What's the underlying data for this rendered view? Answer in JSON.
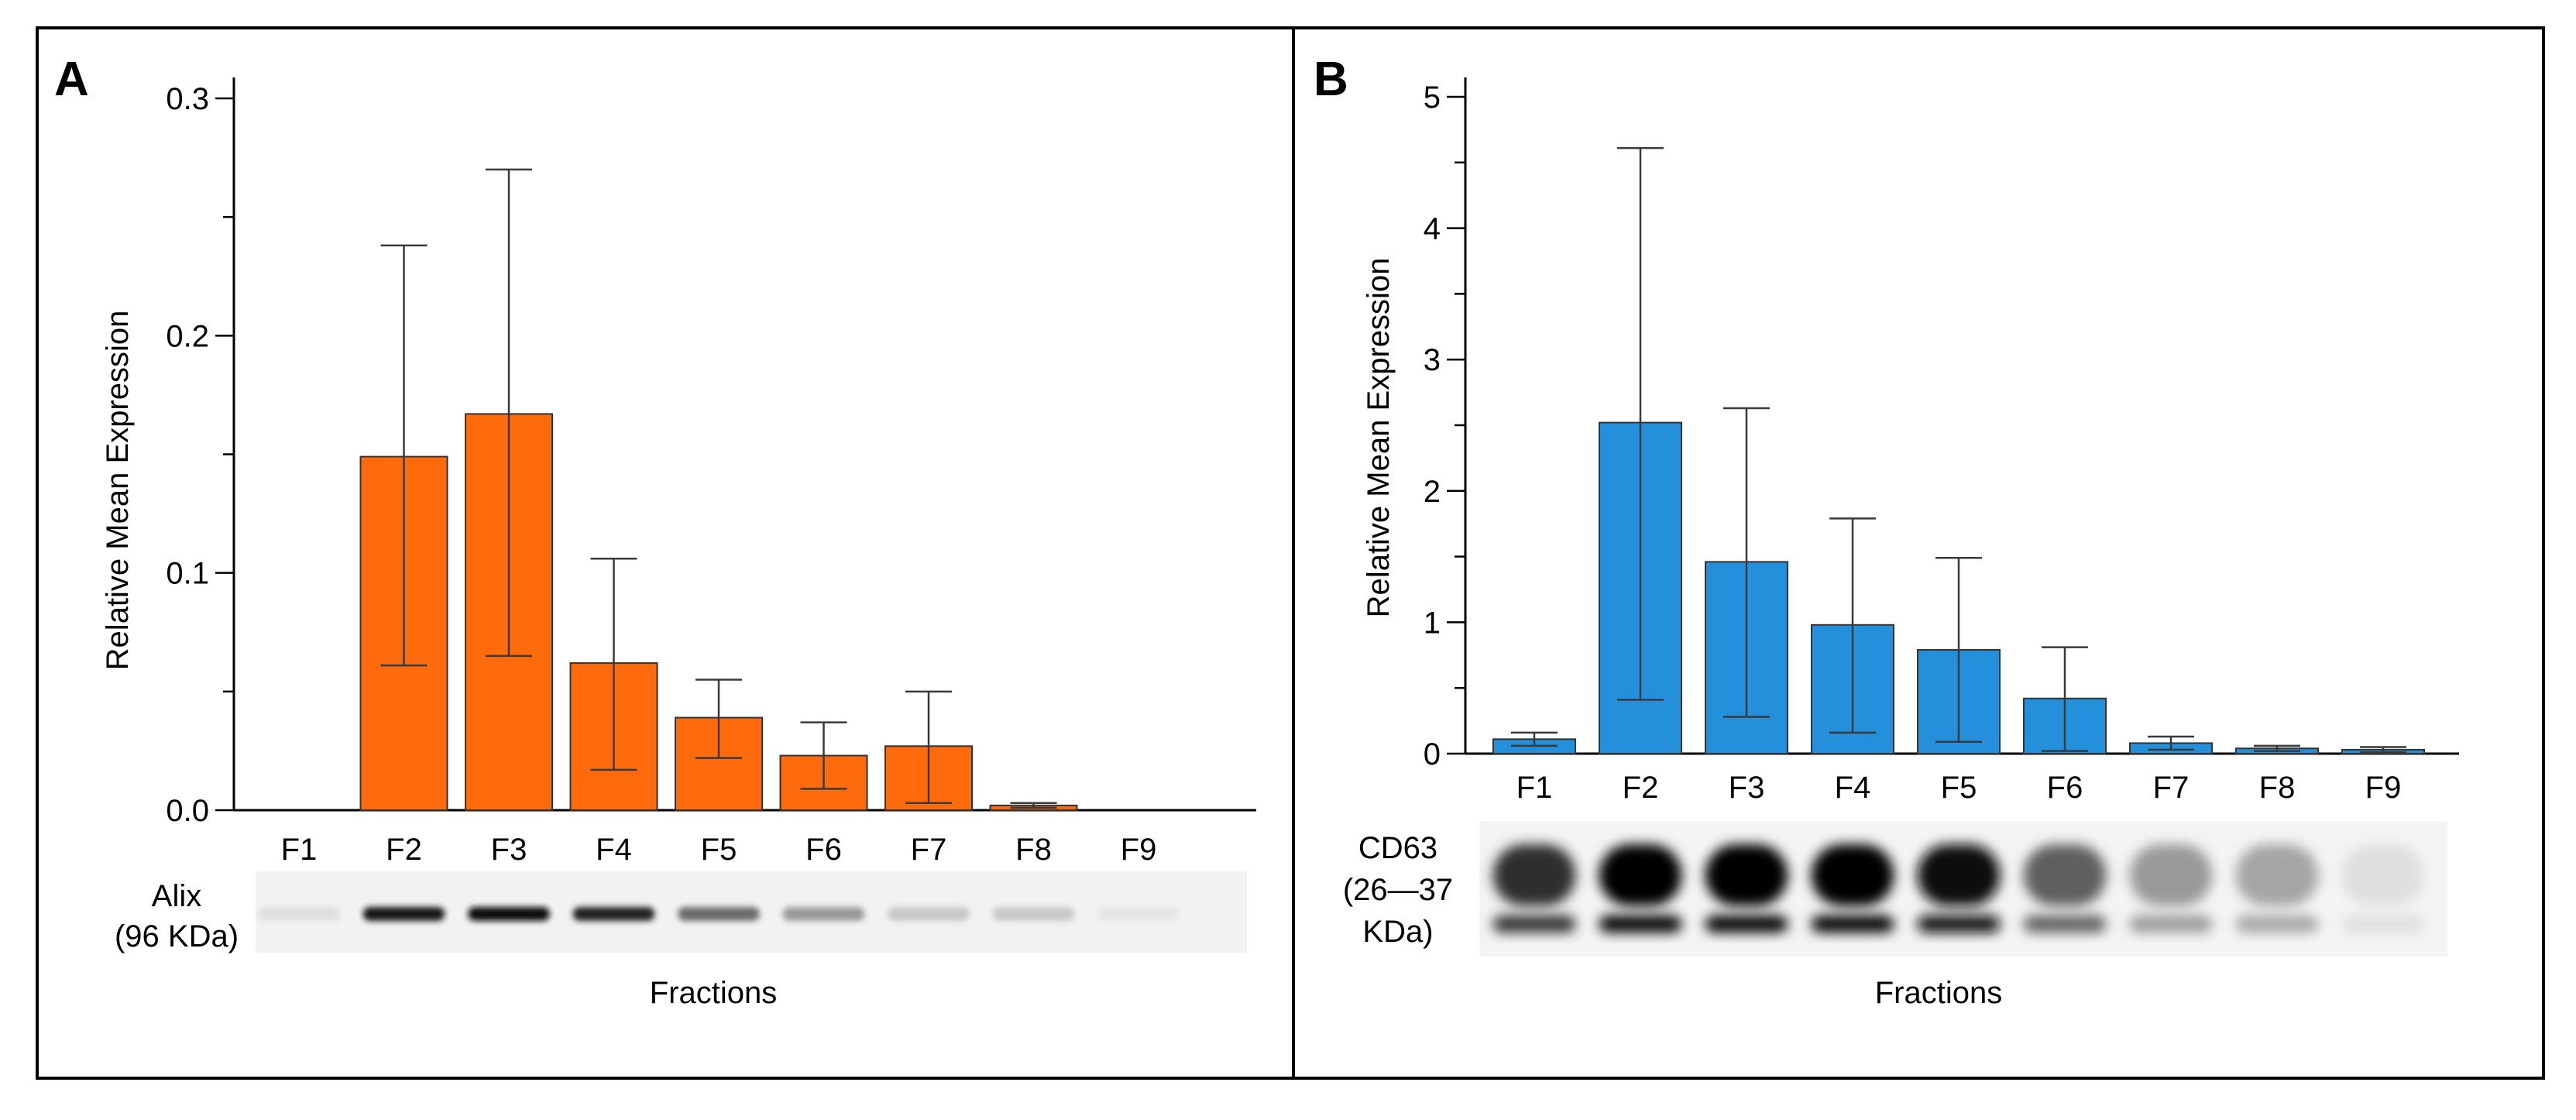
{
  "colors": {
    "panel_a_bar": "#ff6a0d",
    "panel_b_bar": "#248fda",
    "bar_edge": "#333333",
    "border": "#000000"
  },
  "chart_data": [
    {
      "panel": "A",
      "type": "bar",
      "title": "",
      "xlabel": "Fractions",
      "ylabel": "Relative Mean Expression",
      "ylim": [
        0,
        0.3
      ],
      "yticks": [
        "0.0",
        "0.1",
        "0.2",
        "0.3"
      ],
      "categories": [
        "F1",
        "F2",
        "F3",
        "F4",
        "F5",
        "F6",
        "F7",
        "F8",
        "F9"
      ],
      "series": [
        {
          "values": [
            0,
            0.149,
            0.167,
            0.062,
            0.039,
            0.023,
            0.027,
            0.002,
            0
          ],
          "error_upper": [
            0,
            0.238,
            0.27,
            0.106,
            0.055,
            0.037,
            0.05,
            0.003,
            0
          ],
          "error_lower": [
            0,
            0.061,
            0.065,
            0.017,
            0.022,
            0.009,
            0.003,
            0.001,
            0
          ]
        }
      ],
      "grid": false,
      "blot_label": [
        "Alix",
        "(96 KDa)"
      ],
      "blot_band_intensity": [
        0.05,
        0.9,
        0.95,
        0.85,
        0.55,
        0.35,
        0.15,
        0.15,
        0.02
      ]
    },
    {
      "panel": "B",
      "type": "bar",
      "title": "",
      "xlabel": "Fractions",
      "ylabel": "Relative Mean Expression",
      "ylim": [
        0,
        5
      ],
      "yticks": [
        "0",
        "1",
        "2",
        "3",
        "4",
        "5"
      ],
      "categories": [
        "F1",
        "F2",
        "F3",
        "F4",
        "F5",
        "F6",
        "F7",
        "F8",
        "F9"
      ],
      "series": [
        {
          "values": [
            0.11,
            2.52,
            1.46,
            0.98,
            0.79,
            0.42,
            0.08,
            0.04,
            0.03
          ],
          "error_upper": [
            0.16,
            4.61,
            2.63,
            1.79,
            1.49,
            0.81,
            0.13,
            0.06,
            0.05
          ],
          "error_lower": [
            0.06,
            0.41,
            0.28,
            0.16,
            0.09,
            0.02,
            0.03,
            0.02,
            0.01
          ]
        }
      ],
      "grid": false,
      "blot_label": [
        "CD63",
        "(26—37",
        "KDa)"
      ],
      "blot_band_intensity": [
        0.8,
        1.0,
        1.0,
        1.0,
        0.95,
        0.6,
        0.35,
        0.3,
        0.05
      ]
    }
  ]
}
